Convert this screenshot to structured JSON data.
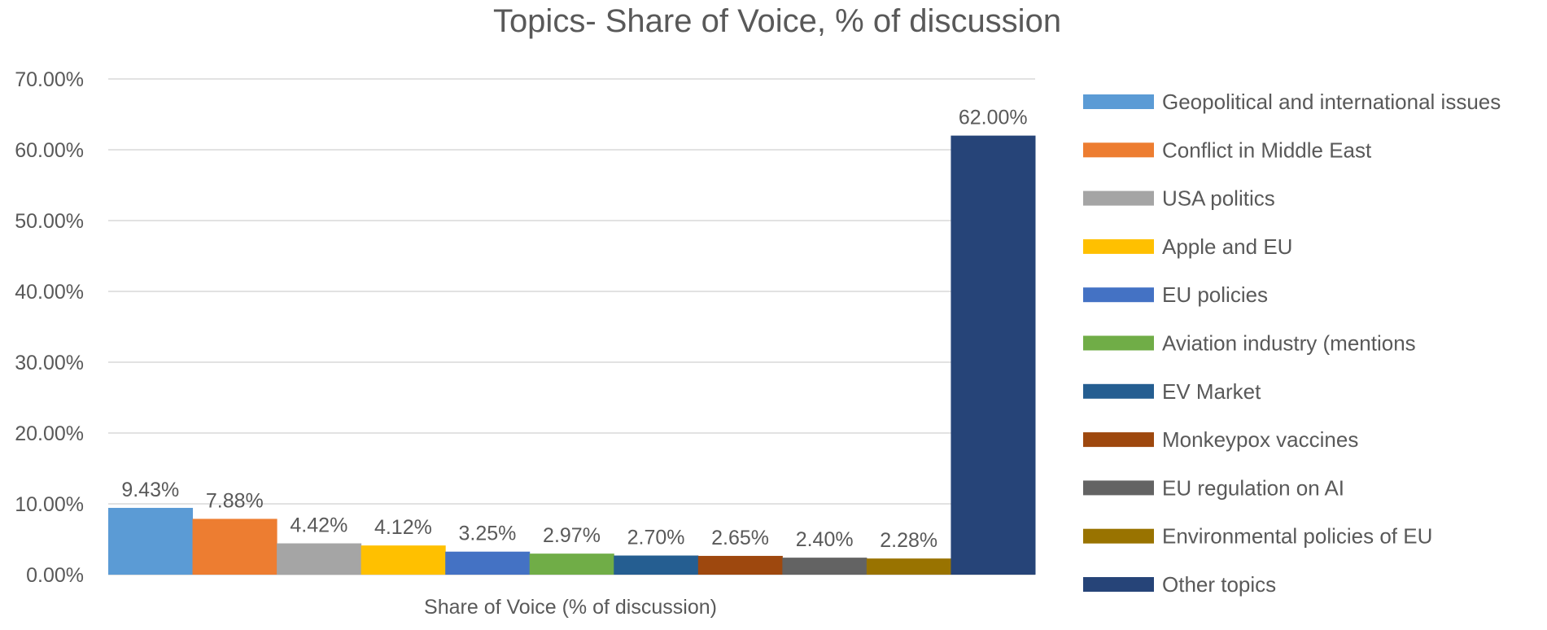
{
  "chart_data": {
    "type": "bar",
    "title": "Topics- Share of Voice, % of discussion",
    "xlabel": "Share of Voice (% of discussion)",
    "ylabel": "",
    "ylim": [
      0,
      70
    ],
    "yticks": [
      "0.00%",
      "10.00%",
      "20.00%",
      "30.00%",
      "40.00%",
      "50.00%",
      "60.00%",
      "70.00%"
    ],
    "ytick_values": [
      0,
      10,
      20,
      30,
      40,
      50,
      60,
      70
    ],
    "grid": true,
    "legend_position": "right",
    "series": [
      {
        "name": "Geopolitical and international issues",
        "value": 9.43,
        "label": "9.43%",
        "color": "#5B9BD5"
      },
      {
        "name": "Conflict in Middle East",
        "value": 7.88,
        "label": "7.88%",
        "color": "#ED7D31"
      },
      {
        "name": "USA politics",
        "value": 4.42,
        "label": "4.42%",
        "color": "#A5A5A5"
      },
      {
        "name": "Apple and EU",
        "value": 4.12,
        "label": "4.12%",
        "color": "#FFC000"
      },
      {
        "name": "EU policies",
        "value": 3.25,
        "label": "3.25%",
        "color": "#4472C4"
      },
      {
        "name": "Aviation industry (mentions",
        "value": 2.97,
        "label": "2.97%",
        "color": "#70AD47"
      },
      {
        "name": "EV Market",
        "value": 2.7,
        "label": "2.70%",
        "color": "#255E91"
      },
      {
        "name": "Monkeypox vaccines",
        "value": 2.65,
        "label": "2.65%",
        "color": "#9E480E"
      },
      {
        "name": "EU regulation on AI",
        "value": 2.4,
        "label": "2.40%",
        "color": "#636363"
      },
      {
        "name": "Environmental policies of EU",
        "value": 2.28,
        "label": "2.28%",
        "color": "#997300"
      },
      {
        "name": "Other topics",
        "value": 62.0,
        "label": "62.00%",
        "color": "#264478"
      }
    ]
  }
}
